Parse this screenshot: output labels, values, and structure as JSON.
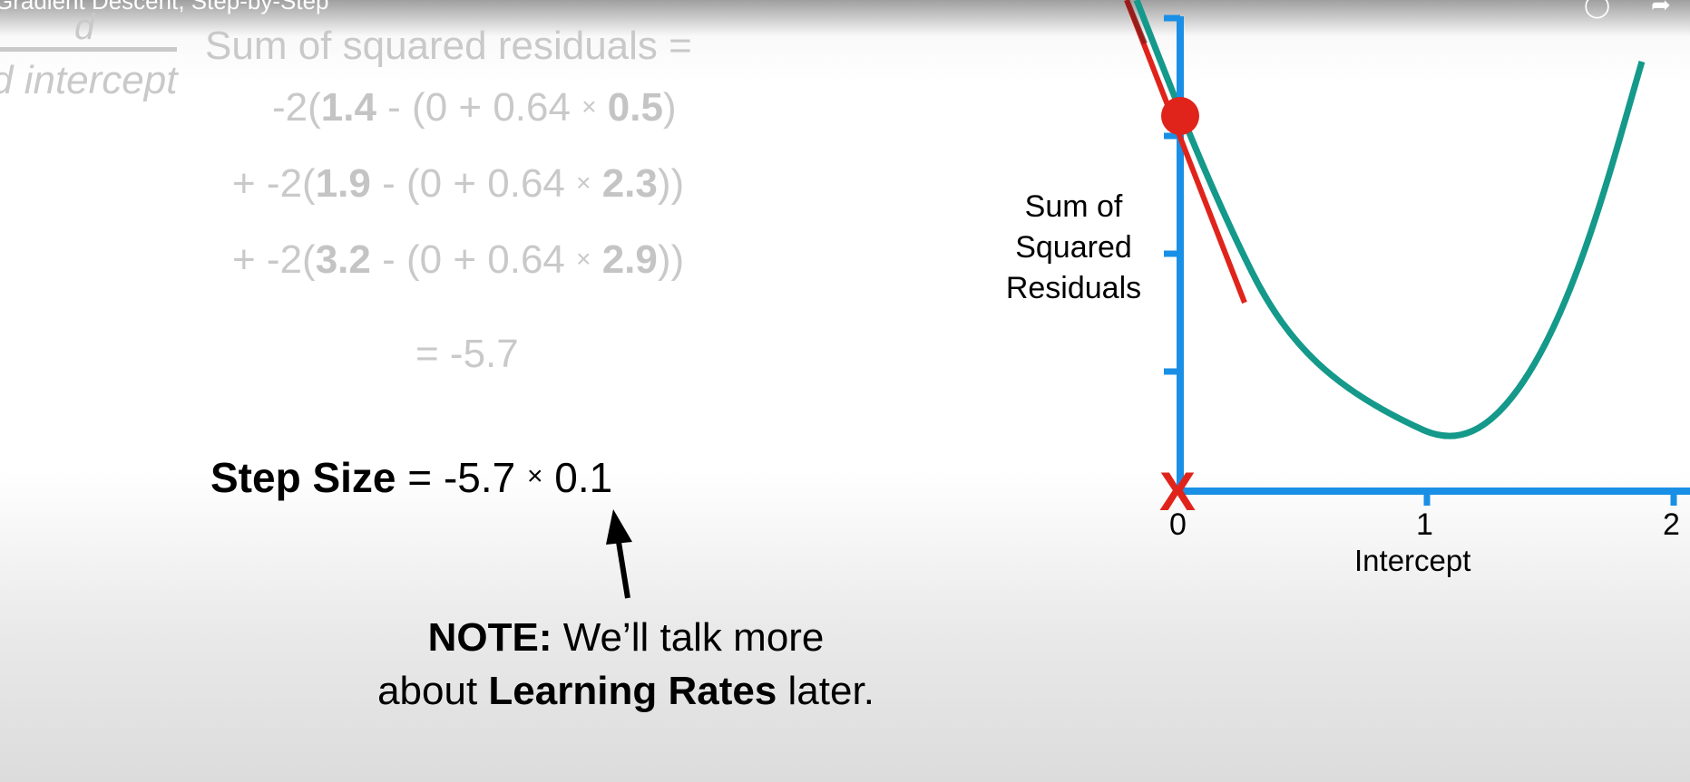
{
  "player": {
    "title": "Gradient Descent, Step-by-Step"
  },
  "derivative": {
    "numerator": "d",
    "denominator": "d intercept",
    "lhs": "Sum of squared residuals ="
  },
  "terms": [
    {
      "prefix": "-2(",
      "observed": "1.4",
      "mid": " - (0 + 0.64 ",
      "times": "×",
      "weight": "0.5",
      "suffix": ")"
    },
    {
      "prefix": "+ -2(",
      "observed": "1.9",
      "mid": " - (0 + 0.64 ",
      "times": "×",
      "weight": "2.3",
      "suffix": "))"
    },
    {
      "prefix": "+ -2(",
      "observed": "3.2",
      "mid": " - (0 + 0.64 ",
      "times": "×",
      "weight": "2.9",
      "suffix": "))"
    }
  ],
  "result": "= -5.7",
  "step": {
    "label": "Step Size",
    "expression_a": " = -5.7 ",
    "times": "×",
    "expression_b": " 0.1"
  },
  "note": {
    "bold1": "NOTE:",
    "text1": " We’ll talk more",
    "text2a": "about ",
    "bold2": "Learning Rates",
    "text2b": " later."
  },
  "chart": {
    "y_label_lines": [
      "Sum of",
      "Squared",
      "Residuals"
    ],
    "x_label": "Intercept",
    "x_ticks": [
      "0",
      "1",
      "2"
    ],
    "colors": {
      "axis": "#1a8fe6",
      "curve": "#14998a",
      "tangent": "#e0241b",
      "point": "#e0241b",
      "marker": "#e0241b"
    }
  }
}
